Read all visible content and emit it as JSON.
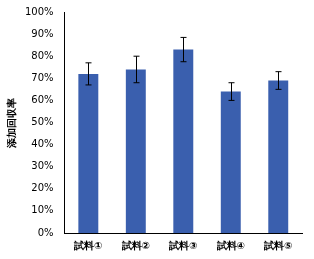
{
  "chart_data": {
    "type": "bar",
    "y_label": "添加回収率",
    "categories": [
      "試料①",
      "試料②",
      "試料③",
      "試料④",
      "試料⑤"
    ],
    "values": [
      72,
      74,
      83,
      64,
      69
    ],
    "errors": [
      5,
      6,
      5.5,
      4,
      4
    ],
    "color": "#3a5fae",
    "ylim": [
      0,
      100
    ],
    "yticks": [
      {
        "value": 0,
        "label": "0%"
      },
      {
        "value": 10,
        "label": "10%"
      },
      {
        "value": 20,
        "label": "20%"
      },
      {
        "value": 30,
        "label": "30%"
      },
      {
        "value": 40,
        "label": "40%"
      },
      {
        "value": 50,
        "label": "50%"
      },
      {
        "value": 60,
        "label": "60%"
      },
      {
        "value": 70,
        "label": "70%"
      },
      {
        "value": 80,
        "label": "80%"
      },
      {
        "value": 90,
        "label": "90%"
      },
      {
        "value": 100,
        "label": "100%"
      }
    ],
    "grid": false
  }
}
